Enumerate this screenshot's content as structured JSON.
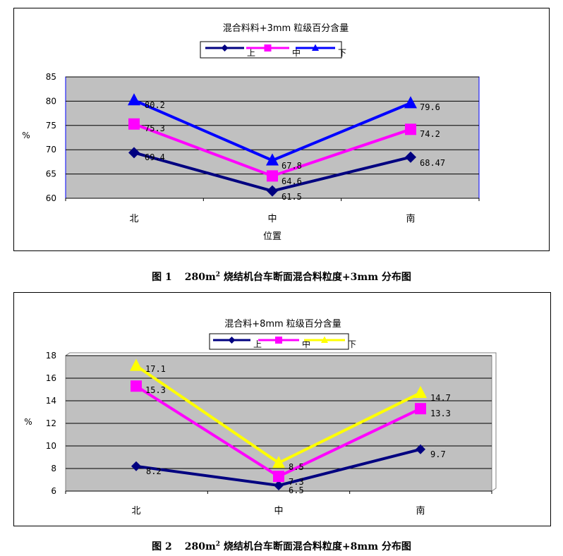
{
  "charts": [
    {
      "caption_fig": "图 1",
      "caption_pre": "280m",
      "caption_sup": "2",
      "caption_post": " 烧结机台车断面混合料粒度+3mm 分布图",
      "chart_data": {
        "type": "line",
        "title": "混合料料+3mm 粒级百分含量",
        "xlabel": "位置",
        "ylabel": "%",
        "categories": [
          "北",
          "中",
          "南"
        ],
        "ylim": [
          60,
          85
        ],
        "yticks": [
          60,
          65,
          70,
          75,
          80,
          85
        ],
        "legend_position": "top-center",
        "grid": true,
        "series": [
          {
            "name": "上",
            "color": "#000080",
            "marker": "diamond",
            "values": [
              69.4,
              61.5,
              68.47
            ],
            "labels": [
              "69.4",
              "61.5",
              "68.47"
            ]
          },
          {
            "name": "中",
            "color": "#FF00FF",
            "marker": "square",
            "values": [
              75.3,
              64.6,
              74.2
            ],
            "labels": [
              "75.3",
              "64.6",
              "74.2"
            ]
          },
          {
            "name": "下",
            "color": "#0000FF",
            "marker": "triangle",
            "values": [
              80.2,
              67.8,
              79.6
            ],
            "labels": [
              "80.2",
              "67.8",
              "79.6"
            ]
          }
        ]
      }
    },
    {
      "caption_fig": "图 2",
      "caption_pre": "280m",
      "caption_sup": "2",
      "caption_post": " 烧结机台车断面混合料粒度+8mm 分布图",
      "chart_data": {
        "type": "line",
        "title": "混合料+8mm 粒级百分含量",
        "xlabel": "",
        "ylabel": "%",
        "categories": [
          "北",
          "中",
          "南"
        ],
        "ylim": [
          6,
          18
        ],
        "yticks": [
          6,
          8,
          10,
          12,
          14,
          16,
          18
        ],
        "legend_position": "top-center",
        "grid": true,
        "series": [
          {
            "name": "上",
            "color": "#000080",
            "marker": "diamond",
            "values": [
              8.2,
              6.5,
              9.7
            ],
            "labels": [
              "8.2",
              "6.5",
              "9.7"
            ]
          },
          {
            "name": "中",
            "color": "#FF00FF",
            "marker": "square",
            "values": [
              15.3,
              7.3,
              13.3
            ],
            "labels": [
              "15.3",
              "7.3",
              "13.3"
            ]
          },
          {
            "name": "下",
            "color": "#FFFF00",
            "marker": "triangle",
            "values": [
              17.1,
              8.5,
              14.7
            ],
            "labels": [
              "17.1",
              "8.5",
              "14.7"
            ]
          }
        ]
      }
    }
  ]
}
